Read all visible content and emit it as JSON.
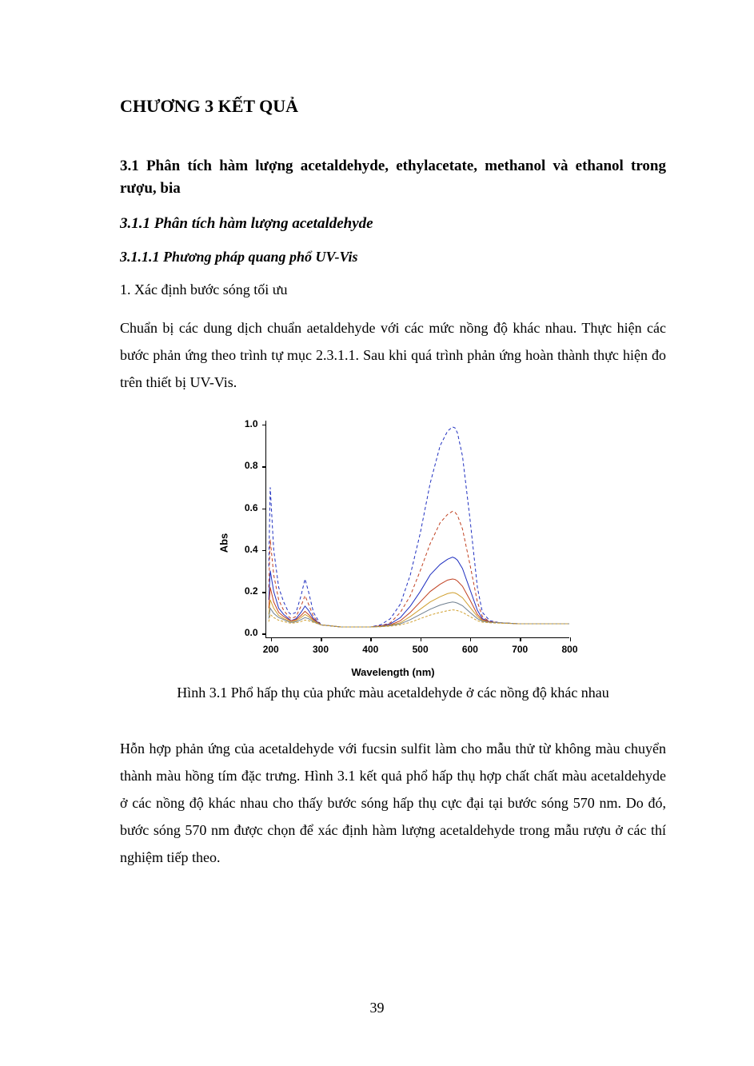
{
  "chapter_title": "CHƯƠNG 3 KẾT QUẢ",
  "section_title": "3.1 Phân tích hàm lượng acetaldehyde, ethylacetate, methanol và ethanol trong rượu, bia",
  "subsection_title": "3.1.1 Phân tích hàm lượng acetaldehyde",
  "subsubsection_title": "3.1.1.1 Phương pháp quang phổ UV-Vis",
  "numbered_item": "1. Xác định bước sóng tối ưu",
  "para_1": "Chuẩn bị các dung dịch chuẩn aetaldehyde với các mức nồng độ khác nhau. Thực hiện các bước phản ứng theo trình tự mục 2.3.1.1. Sau khi quá trình phản ứng hoàn thành thực hiện đo trên thiết bị UV-Vis.",
  "figure_caption": "Hình 3.1 Phổ hấp thụ của phức màu acetaldehyde ở các nồng độ khác nhau",
  "para_2": "Hỗn hợp phản ứng của acetaldehyde với fucsin sulfit làm cho mẫu thử từ không màu chuyển thành màu hồng tím đặc trưng. Hình 3.1 kết quả phổ hấp thụ hợp chất chất màu acetaldehyde ở các nồng độ khác nhau cho thấy bước sóng hấp thụ cực đại tại bước sóng 570 nm. Do đó, bước sóng 570 nm được chọn để xác định hàm lượng acetaldehyde trong mẫu rượu ở các thí nghiệm tiếp theo.",
  "page_number": "39",
  "chart": {
    "type": "line",
    "ylabel": "Abs",
    "xlabel": "Wavelength (nm)",
    "xlim": [
      190,
      800
    ],
    "ylim": [
      -0.02,
      1.02
    ],
    "xticks": [
      200,
      300,
      400,
      500,
      600,
      700,
      800
    ],
    "yticks": [
      0.0,
      0.2,
      0.4,
      0.6,
      0.8,
      1.0
    ],
    "ytick_labels": [
      "0.0",
      "0.2",
      "0.4",
      "0.6",
      "0.8",
      "1.0"
    ],
    "tick_fontsize": 12,
    "label_fontsize": 13,
    "background_color": "#ffffff",
    "axis_color": "#000000",
    "line_width": 1,
    "series": [
      {
        "color": "#2030c0",
        "dash": "4,3",
        "x": [
          195,
          198,
          205,
          215,
          225,
          235,
          240,
          250,
          260,
          268,
          275,
          285,
          300,
          320,
          340,
          360,
          380,
          400,
          420,
          440,
          460,
          480,
          500,
          520,
          540,
          555,
          565,
          570,
          575,
          585,
          600,
          615,
          625,
          640,
          660,
          700,
          750,
          800
        ],
        "y": [
          0.32,
          0.7,
          0.4,
          0.22,
          0.15,
          0.1,
          0.09,
          0.1,
          0.18,
          0.26,
          0.2,
          0.1,
          0.04,
          0.035,
          0.03,
          0.03,
          0.03,
          0.03,
          0.04,
          0.07,
          0.14,
          0.28,
          0.48,
          0.72,
          0.9,
          0.97,
          0.99,
          0.985,
          0.96,
          0.85,
          0.55,
          0.22,
          0.1,
          0.06,
          0.05,
          0.045,
          0.045,
          0.045
        ]
      },
      {
        "color": "#c04020",
        "dash": "4,3",
        "x": [
          195,
          198,
          205,
          215,
          225,
          235,
          240,
          250,
          260,
          268,
          275,
          285,
          300,
          320,
          340,
          360,
          380,
          400,
          420,
          440,
          460,
          480,
          500,
          520,
          540,
          555,
          565,
          570,
          575,
          585,
          600,
          615,
          625,
          640,
          660,
          700,
          750,
          800
        ],
        "y": [
          0.22,
          0.45,
          0.28,
          0.16,
          0.11,
          0.08,
          0.07,
          0.08,
          0.13,
          0.18,
          0.14,
          0.08,
          0.04,
          0.035,
          0.03,
          0.03,
          0.03,
          0.03,
          0.035,
          0.05,
          0.1,
          0.18,
          0.3,
          0.43,
          0.53,
          0.57,
          0.585,
          0.58,
          0.565,
          0.5,
          0.33,
          0.15,
          0.08,
          0.055,
          0.05,
          0.045,
          0.045,
          0.045
        ]
      },
      {
        "color": "#2030c0",
        "dash": "none",
        "x": [
          195,
          198,
          205,
          215,
          225,
          235,
          240,
          250,
          260,
          268,
          275,
          285,
          300,
          320,
          340,
          360,
          380,
          400,
          420,
          440,
          460,
          480,
          500,
          520,
          540,
          555,
          565,
          570,
          575,
          585,
          600,
          615,
          625,
          640,
          660,
          700,
          750,
          800
        ],
        "y": [
          0.16,
          0.3,
          0.2,
          0.12,
          0.09,
          0.07,
          0.06,
          0.07,
          0.1,
          0.13,
          0.11,
          0.07,
          0.04,
          0.035,
          0.03,
          0.03,
          0.03,
          0.03,
          0.035,
          0.045,
          0.075,
          0.13,
          0.2,
          0.28,
          0.33,
          0.355,
          0.365,
          0.36,
          0.35,
          0.31,
          0.21,
          0.11,
          0.07,
          0.055,
          0.05,
          0.045,
          0.045,
          0.045
        ]
      },
      {
        "color": "#c04020",
        "dash": "none",
        "x": [
          195,
          198,
          205,
          215,
          225,
          235,
          240,
          250,
          260,
          268,
          275,
          285,
          300,
          320,
          340,
          360,
          380,
          400,
          420,
          440,
          460,
          480,
          500,
          520,
          540,
          555,
          565,
          570,
          575,
          585,
          600,
          615,
          625,
          640,
          660,
          700,
          750,
          800
        ],
        "y": [
          0.12,
          0.22,
          0.15,
          0.1,
          0.08,
          0.065,
          0.06,
          0.065,
          0.085,
          0.105,
          0.09,
          0.065,
          0.04,
          0.035,
          0.03,
          0.03,
          0.03,
          0.03,
          0.035,
          0.04,
          0.06,
          0.1,
          0.15,
          0.2,
          0.235,
          0.255,
          0.26,
          0.258,
          0.25,
          0.225,
          0.16,
          0.09,
          0.065,
          0.055,
          0.05,
          0.045,
          0.045,
          0.045
        ]
      },
      {
        "color": "#d0a030",
        "dash": "none",
        "x": [
          195,
          198,
          205,
          215,
          225,
          235,
          240,
          250,
          260,
          268,
          275,
          285,
          300,
          320,
          340,
          360,
          380,
          400,
          420,
          440,
          460,
          480,
          500,
          520,
          540,
          555,
          565,
          570,
          575,
          585,
          600,
          615,
          625,
          640,
          660,
          700,
          750,
          800
        ],
        "y": [
          0.09,
          0.16,
          0.12,
          0.085,
          0.07,
          0.06,
          0.055,
          0.06,
          0.075,
          0.09,
          0.08,
          0.06,
          0.04,
          0.035,
          0.03,
          0.03,
          0.03,
          0.03,
          0.033,
          0.038,
          0.05,
          0.08,
          0.115,
          0.15,
          0.175,
          0.19,
          0.195,
          0.193,
          0.187,
          0.17,
          0.125,
          0.08,
          0.06,
          0.053,
          0.05,
          0.045,
          0.045,
          0.045
        ]
      },
      {
        "color": "#708090",
        "dash": "none",
        "x": [
          195,
          198,
          205,
          215,
          225,
          235,
          240,
          250,
          260,
          268,
          275,
          285,
          300,
          320,
          340,
          360,
          380,
          400,
          420,
          440,
          460,
          480,
          500,
          520,
          540,
          555,
          565,
          570,
          575,
          585,
          600,
          615,
          625,
          640,
          660,
          700,
          750,
          800
        ],
        "y": [
          0.07,
          0.12,
          0.095,
          0.075,
          0.065,
          0.055,
          0.052,
          0.055,
          0.065,
          0.075,
          0.07,
          0.055,
          0.04,
          0.035,
          0.03,
          0.03,
          0.03,
          0.03,
          0.032,
          0.036,
          0.045,
          0.065,
          0.09,
          0.115,
          0.135,
          0.145,
          0.15,
          0.148,
          0.144,
          0.132,
          0.1,
          0.07,
          0.057,
          0.052,
          0.05,
          0.045,
          0.045,
          0.045
        ]
      },
      {
        "color": "#d0a030",
        "dash": "3,2",
        "x": [
          195,
          198,
          205,
          215,
          225,
          235,
          240,
          250,
          260,
          268,
          275,
          285,
          300,
          320,
          340,
          360,
          380,
          400,
          420,
          440,
          460,
          480,
          500,
          520,
          540,
          555,
          565,
          570,
          575,
          585,
          600,
          615,
          625,
          640,
          660,
          700,
          750,
          800
        ],
        "y": [
          0.055,
          0.09,
          0.075,
          0.062,
          0.056,
          0.05,
          0.048,
          0.05,
          0.056,
          0.063,
          0.06,
          0.052,
          0.04,
          0.035,
          0.03,
          0.03,
          0.03,
          0.03,
          0.031,
          0.034,
          0.04,
          0.052,
          0.07,
          0.087,
          0.1,
          0.108,
          0.112,
          0.111,
          0.108,
          0.1,
          0.08,
          0.06,
          0.053,
          0.05,
          0.048,
          0.045,
          0.045,
          0.045
        ]
      }
    ]
  }
}
